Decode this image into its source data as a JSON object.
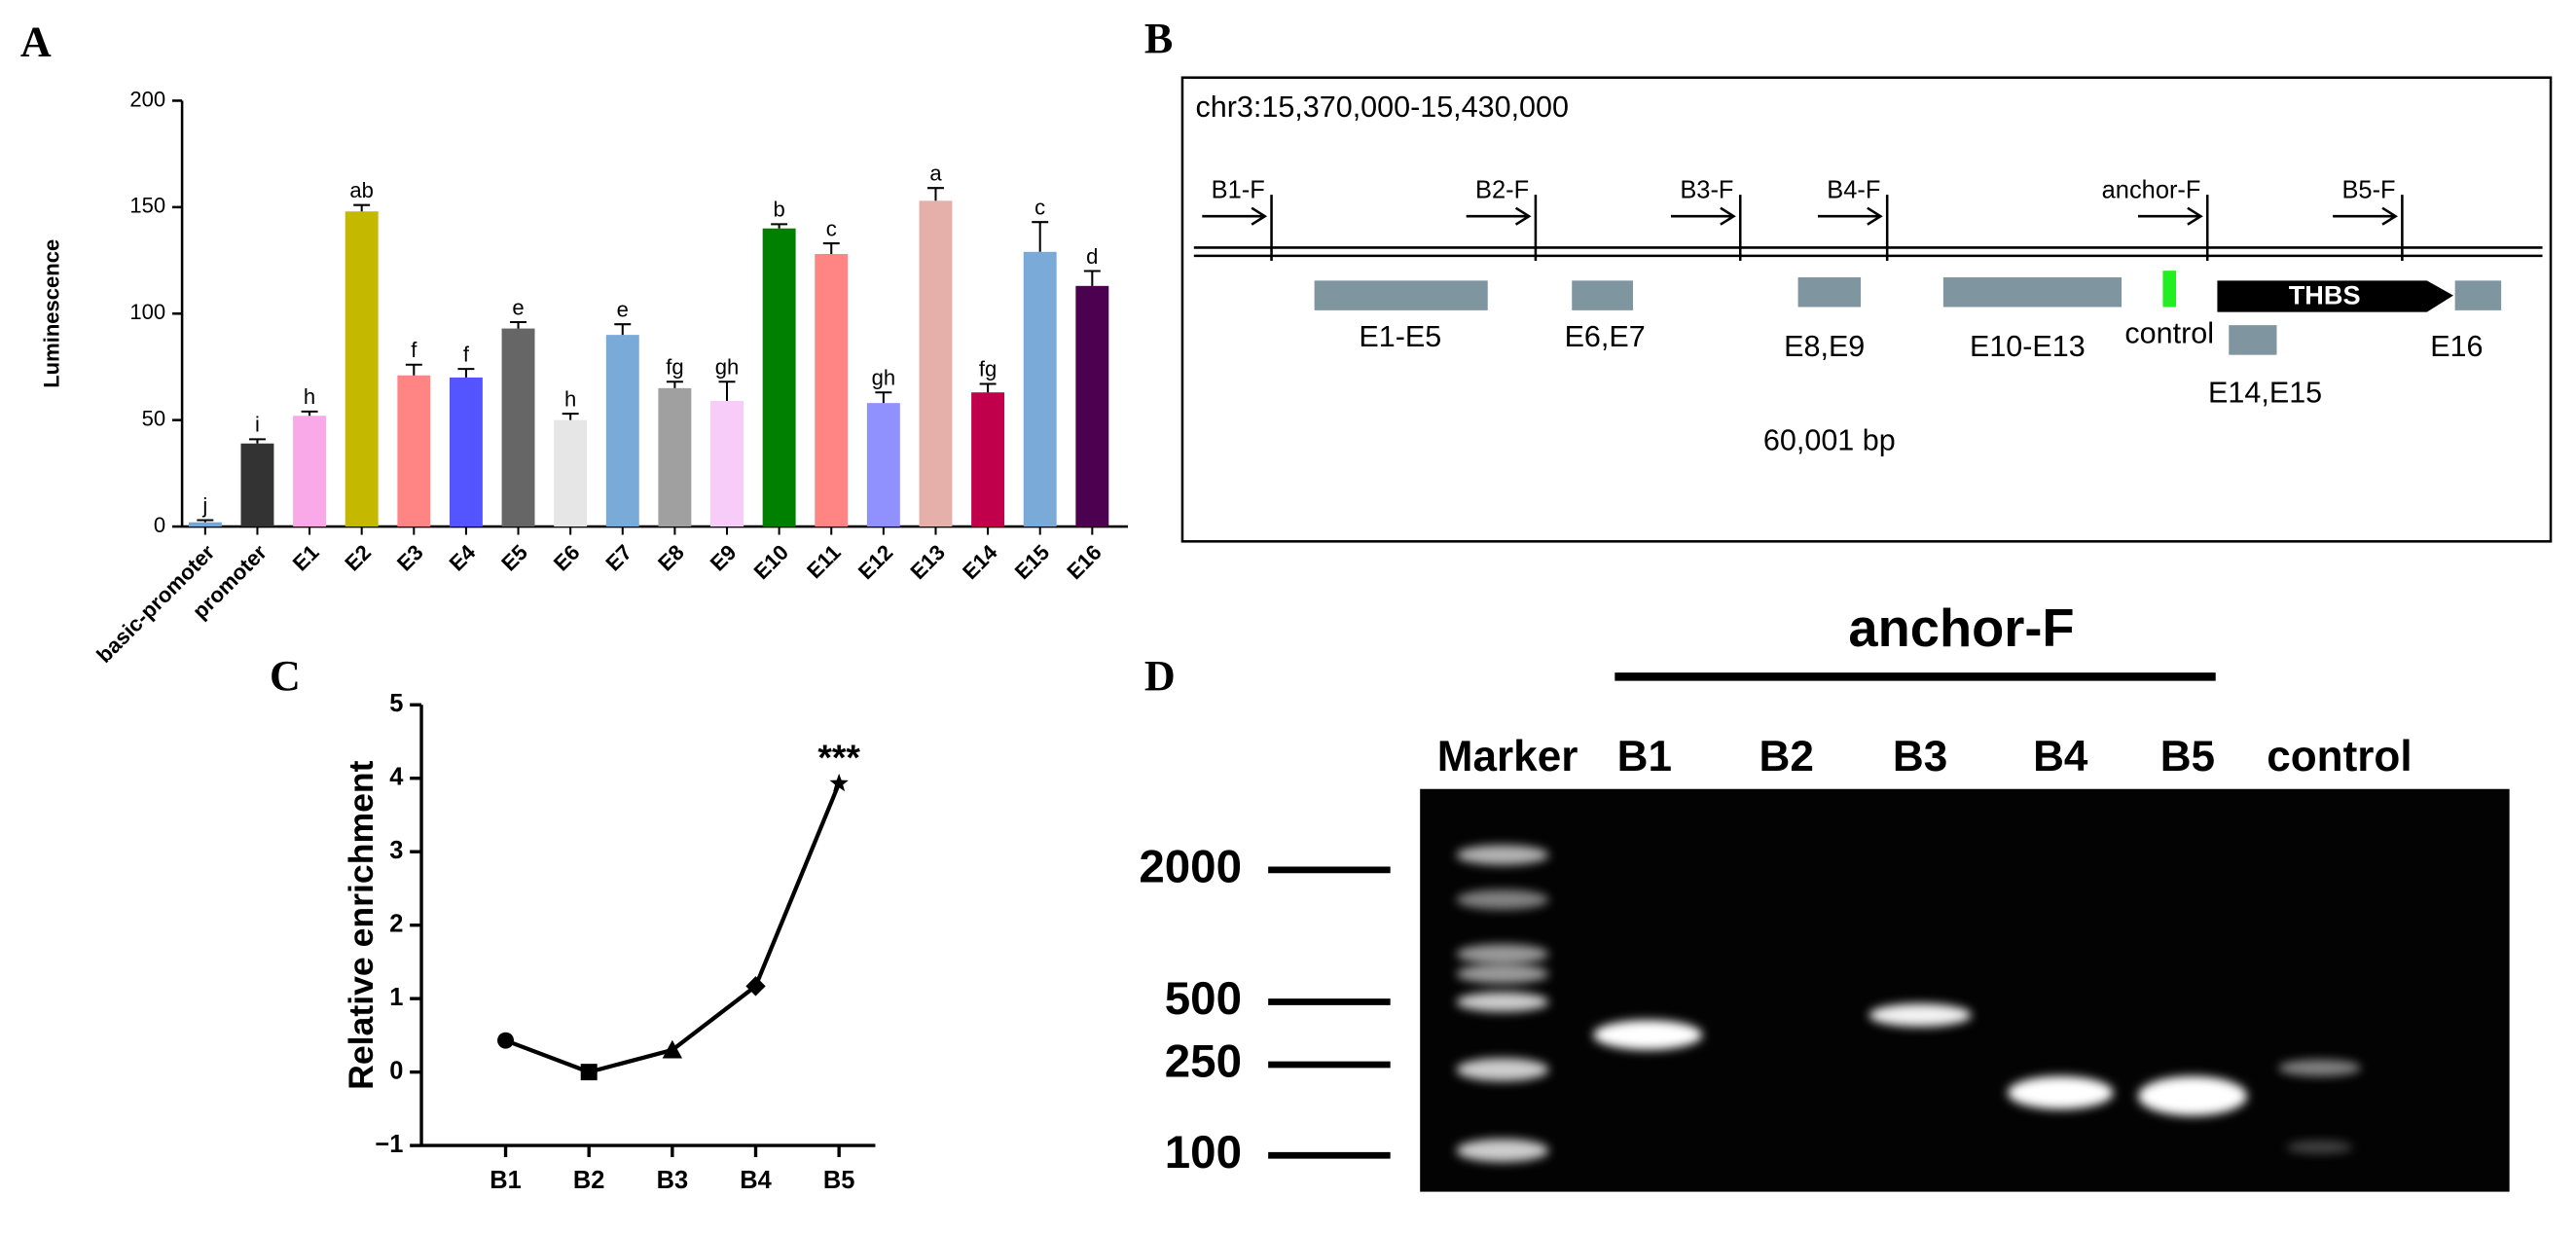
{
  "chart_data": [
    {
      "type": "bar",
      "panel": "A",
      "ylabel": "Luminescence",
      "categories": [
        "basic-promoter",
        "promoter",
        "E1",
        "E2",
        "E3",
        "E4",
        "E5",
        "E6",
        "E7",
        "E8",
        "E9",
        "E10",
        "E11",
        "E12",
        "E13",
        "E14",
        "E15",
        "E16"
      ],
      "values": [
        2,
        39,
        52,
        148,
        71,
        70,
        93,
        50,
        90,
        65,
        59,
        140,
        128,
        58,
        153,
        63,
        129,
        113
      ],
      "errors": [
        1,
        2,
        2,
        3,
        5,
        4,
        3,
        3,
        5,
        3,
        9,
        2,
        5,
        5,
        6,
        4,
        14,
        7
      ],
      "letters": [
        "j",
        "i",
        "h",
        "ab",
        "f",
        "f",
        "e",
        "h",
        "e",
        "fg",
        "gh",
        "b",
        "c",
        "gh",
        "a",
        "fg",
        "c",
        "d"
      ],
      "colors": [
        "#6fa8dc",
        "#333333",
        "#f9a8e8",
        "#c4b800",
        "#ff8585",
        "#5555ff",
        "#666666",
        "#e6e6e6",
        "#7aaad8",
        "#a0a0a0",
        "#f8ccf8",
        "#008000",
        "#ff8585",
        "#9090ff",
        "#e6b0aa",
        "#c0004a",
        "#7aaad8",
        "#4b0050"
      ],
      "ylim": [
        0,
        200
      ],
      "yticks": [
        0,
        50,
        100,
        150,
        200
      ]
    },
    {
      "type": "line",
      "panel": "C",
      "ylabel": "Relative enrichment",
      "categories": [
        "B1",
        "B2",
        "B3",
        "B4",
        "B5"
      ],
      "values": [
        0.43,
        0,
        0.3,
        1.17,
        3.93
      ],
      "markers": [
        "circle",
        "square",
        "triangle",
        "diamond",
        "star"
      ],
      "annotation": "***",
      "color": "#000000",
      "ylim": [
        -1,
        5
      ],
      "yticks": [
        {
          "value": -1,
          "label": "−1"
        },
        0,
        1,
        2,
        3,
        4,
        5
      ]
    }
  ],
  "diagram": {
    "panel": "B",
    "title": "chr3:15,370,000-15,430,000",
    "primers": [
      "B1-F",
      "B2-F",
      "B3-F",
      "B4-F",
      "anchor-F",
      "B5-F"
    ],
    "regions": [
      "E1-E5",
      "E6,E7",
      "E8,E9",
      "E10-E13",
      "control",
      "THBS",
      "E14,E15",
      "E16"
    ],
    "length": "60,001 bp"
  },
  "gel": {
    "panel": "D",
    "primer": "anchor-F",
    "lanes": [
      "Marker",
      "B1",
      "B2",
      "B3",
      "B4",
      "B5",
      "control"
    ],
    "ladder": [
      2000,
      500,
      250,
      100
    ]
  }
}
